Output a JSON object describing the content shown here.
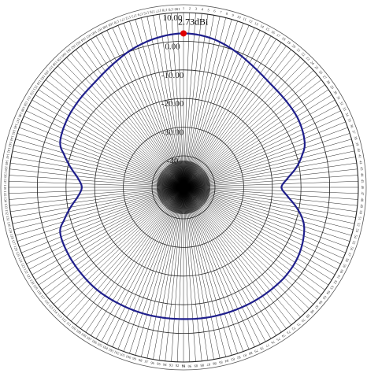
{
  "chart_data": {
    "type": "polar-line",
    "title": "",
    "unit": "dBi",
    "angle_start_at_top": true,
    "angle_direction": "clockwise",
    "angle_labels": {
      "right_side": [
        "1",
        "2",
        "3",
        "4",
        "5",
        "6",
        "7",
        "8",
        "9",
        "10",
        "11",
        "12",
        "13",
        "14",
        "15",
        "16",
        "17",
        "18",
        "19",
        "20",
        "21",
        "22",
        "23",
        "24",
        "25",
        "26",
        "27",
        "28",
        "29",
        "30",
        "31",
        "32",
        "33",
        "34",
        "35",
        "36",
        "37",
        "38",
        "39",
        "40",
        "41",
        "42",
        "43",
        "44",
        "45",
        "46",
        "47",
        "48",
        "49",
        "50",
        "51",
        "52",
        "53",
        "54",
        "55",
        "56",
        "57",
        "58",
        "59",
        "60",
        "61",
        "62",
        "63",
        "64",
        "65",
        "66",
        "67",
        "68",
        "69",
        "70",
        "71",
        "72",
        "73",
        "74",
        "75",
        "76",
        "77",
        "78",
        "79",
        "80",
        "81",
        "82",
        "83",
        "84",
        "85",
        "86",
        "87",
        "88",
        "89",
        "90",
        "91"
      ],
      "left_side_bottom_to_top": [
        "91",
        "92",
        "93",
        "94",
        "95",
        "96",
        "97",
        "98",
        "99",
        "100",
        "101",
        "102",
        "103",
        "104",
        "105",
        "106",
        "107",
        "108",
        "109",
        "110",
        "111",
        "112",
        "113",
        "114",
        "115",
        "116",
        "117",
        "118",
        "119",
        "120",
        "121",
        "122",
        "123",
        "124",
        "125",
        "126",
        "127",
        "128",
        "129",
        "130",
        "131",
        "132",
        "133",
        "134",
        "135",
        "136",
        "137",
        "138",
        "139",
        "140",
        "141",
        "142",
        "143",
        "144",
        "145",
        "146",
        "147",
        "148",
        "149",
        "150",
        "151",
        "152",
        "153",
        "154",
        "155",
        "156",
        "157",
        "158",
        "159",
        "160",
        "161",
        "162",
        "163",
        "164",
        "165",
        "166",
        "167",
        "168",
        "169",
        "170",
        "171",
        "172",
        "173",
        "174",
        "175",
        "176",
        "177",
        "178",
        "179",
        "180"
      ]
    },
    "radial_ticks": [
      "10.00",
      "0.00",
      "-10.00",
      "-20.00",
      "-30.00",
      "-40"
    ],
    "radial_range_dbi": [
      -40,
      10
    ],
    "peak": {
      "label": "2.73dBi",
      "angle_deg": 0,
      "value": 2.73,
      "marker_color": "#e00000"
    },
    "series": [
      {
        "color": "#1f1f8c",
        "angles_deg": [
          0,
          10,
          20,
          30,
          40,
          50,
          60,
          70,
          75,
          80,
          85,
          90,
          95,
          100,
          105,
          110,
          120,
          130,
          140,
          150,
          160,
          170,
          180,
          190,
          200,
          210,
          220,
          230,
          240,
          250,
          255,
          260,
          265,
          270,
          275,
          280,
          285,
          290,
          300,
          310,
          320,
          330,
          340,
          350
        ],
        "values_dbi": [
          2.73,
          2.0,
          0.0,
          -2.3,
          -3.8,
          -4.2,
          -4.5,
          -6.0,
          -8.2,
          -11.0,
          -14.5,
          -16.8,
          -14.5,
          -11.0,
          -8.0,
          -6.2,
          -4.4,
          -3.8,
          -4.0,
          -4.3,
          -4.6,
          -4.8,
          -5.0,
          -4.9,
          -4.7,
          -4.5,
          -4.2,
          -4.3,
          -4.5,
          -5.2,
          -8.0,
          -11.0,
          -14.0,
          -15.5,
          -14.0,
          -11.0,
          -8.0,
          -5.2,
          -4.0,
          -3.5,
          -3.0,
          -1.5,
          0.5,
          2.0
        ]
      }
    ]
  }
}
